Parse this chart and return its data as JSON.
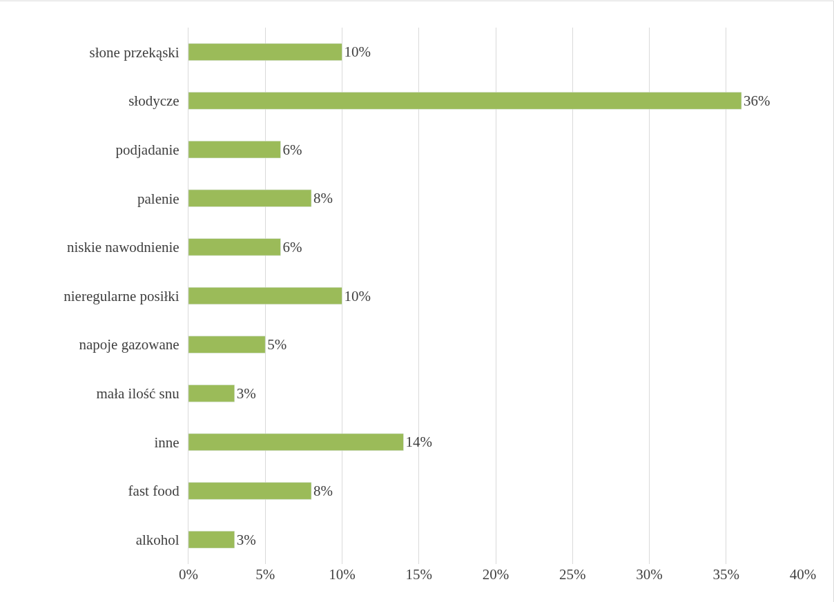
{
  "chart_data": {
    "type": "bar",
    "orientation": "horizontal",
    "categories": [
      "słone przekąski",
      "słodycze",
      "podjadanie",
      "palenie",
      "niskie nawodnienie",
      "nieregularne posiłki",
      "napoje gazowane",
      "mała ilość snu",
      "inne",
      "fast food",
      "alkohol"
    ],
    "values": [
      10,
      36,
      6,
      8,
      6,
      10,
      5,
      3,
      14,
      8,
      3
    ],
    "value_labels": [
      "10%",
      "36%",
      "6%",
      "8%",
      "6%",
      "10%",
      "5%",
      "3%",
      "14%",
      "8%",
      "3%"
    ],
    "color": "#9bbb59",
    "xlim": [
      0,
      40
    ],
    "xticks": [
      {
        "value": 0,
        "label": "0%"
      },
      {
        "value": 5,
        "label": "5%"
      },
      {
        "value": 10,
        "label": "10%"
      },
      {
        "value": 15,
        "label": "15%"
      },
      {
        "value": 20,
        "label": "20%"
      },
      {
        "value": 25,
        "label": "25%"
      },
      {
        "value": 30,
        "label": "30%"
      },
      {
        "value": 35,
        "label": "35%"
      },
      {
        "value": 40,
        "label": "40%"
      }
    ],
    "grid": "x"
  }
}
